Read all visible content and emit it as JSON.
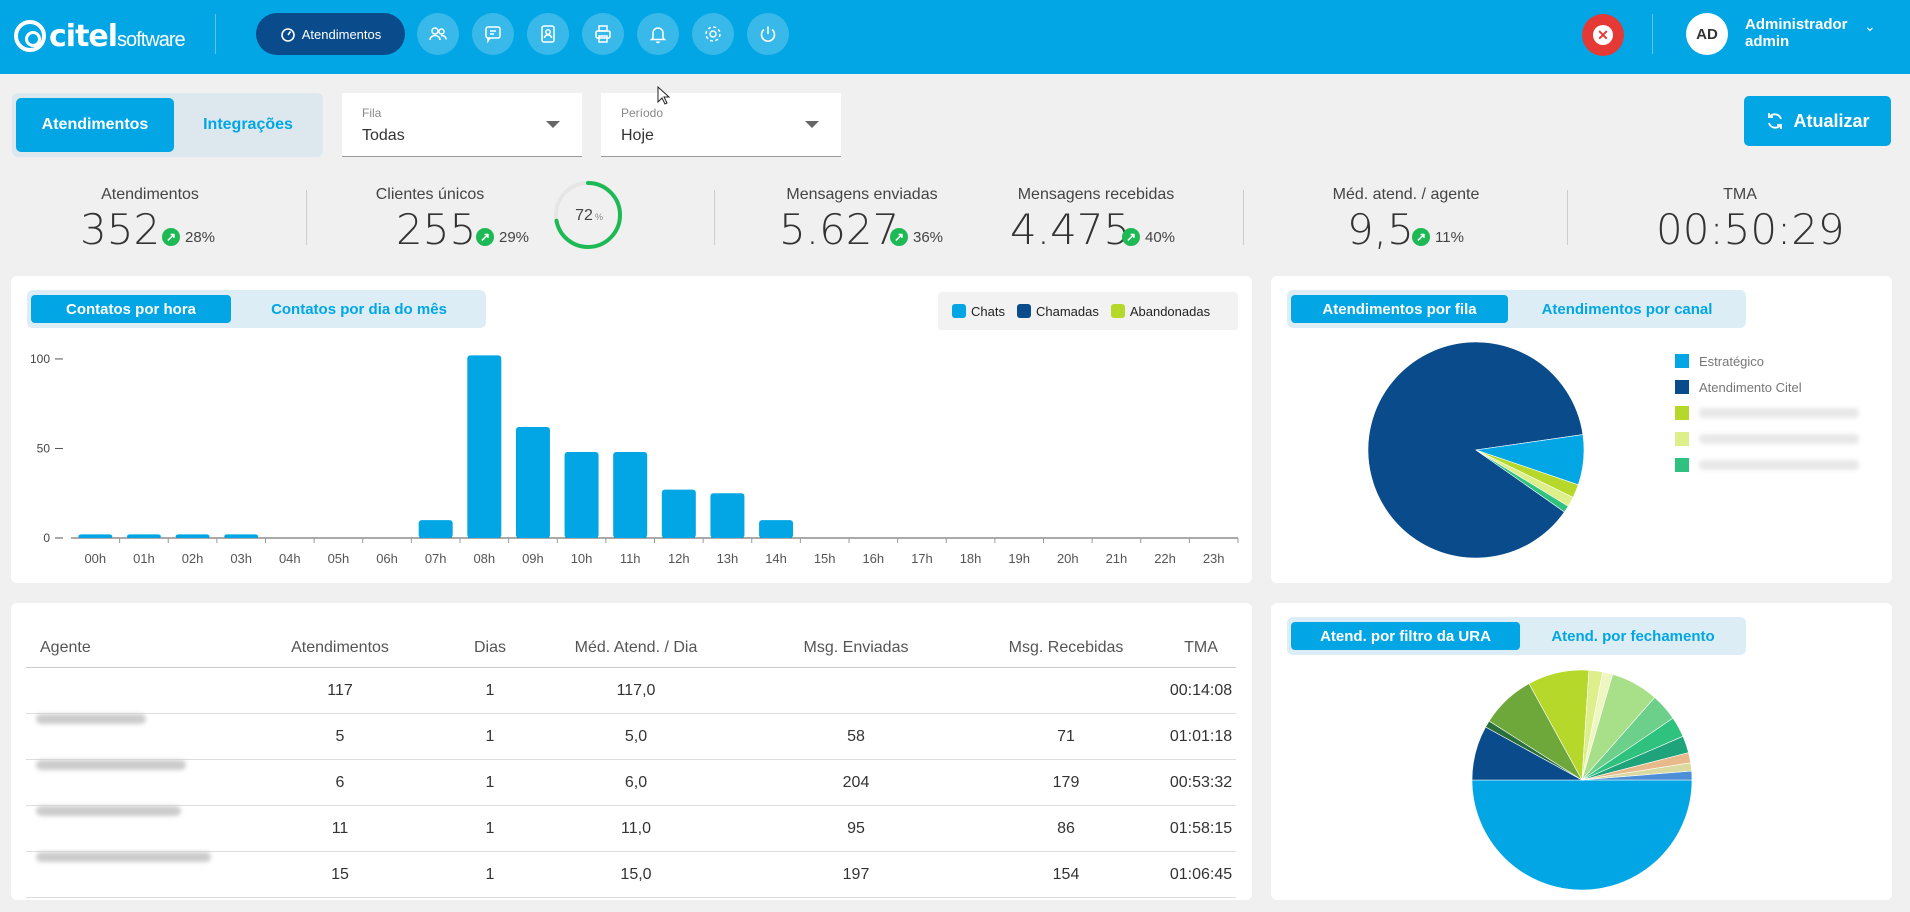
{
  "brand": {
    "name": "citel",
    "sub": "software"
  },
  "nav": {
    "active_label": "Atendimentos"
  },
  "user": {
    "initials": "AD",
    "name": "Administrador",
    "role": "admin"
  },
  "tabs": {
    "active": "Atendimentos",
    "inactive": "Integrações"
  },
  "filters": {
    "fila": {
      "label": "Fila",
      "value": "Todas"
    },
    "periodo": {
      "label": "Período",
      "value": "Hoje"
    }
  },
  "refresh_label": "Atualizar",
  "kpis": {
    "atendimentos": {
      "label": "Atendimentos",
      "value": "352",
      "delta": "28%"
    },
    "clientes": {
      "label": "Clientes únicos",
      "value": "255",
      "delta": "29%",
      "ring_value": "72",
      "ring_unit": "%",
      "ring_fraction": 0.72
    },
    "enviadas": {
      "label": "Mensagens enviadas",
      "value": "5.627",
      "delta": "36%"
    },
    "recebidas": {
      "label": "Mensagens recebidas",
      "value": "4.475",
      "delta": "40%"
    },
    "media": {
      "label": "Méd. atend. / agente",
      "value": "9,5",
      "delta": "11%"
    },
    "tma": {
      "label": "TMA",
      "value": "00:50:29"
    }
  },
  "bar_panel": {
    "tab_active": "Contatos por hora",
    "tab_inactive": "Contatos por dia do mês",
    "legend": [
      "Chats",
      "Chamadas",
      "Abandonadas"
    ]
  },
  "pie1_panel": {
    "tab_active": "Atendimentos por fila",
    "tab_inactive": "Atendimentos por canal",
    "legend": [
      "Estratégico",
      "Atendimento Citel"
    ]
  },
  "pie2_panel": {
    "tab_active": "Atend. por filtro da URA",
    "tab_inactive": "Atend. por fechamento"
  },
  "colors": {
    "chats": "#02a6e4",
    "chamadas": "#0a4b8c",
    "abandonadas": "#b5d82a",
    "accent": "#02a6e4"
  },
  "table": {
    "headers": [
      "Agente",
      "Atendimentos",
      "Dias",
      "Méd. Atend. / Dia",
      "Msg. Enviadas",
      "Msg. Recebidas",
      "TMA"
    ],
    "rows": [
      [
        "",
        "117",
        "1",
        "117,0",
        "",
        "",
        "00:14:08"
      ],
      [
        "",
        "5",
        "1",
        "5,0",
        "58",
        "71",
        "01:01:18"
      ],
      [
        "",
        "6",
        "1",
        "6,0",
        "204",
        "179",
        "00:53:32"
      ],
      [
        "",
        "11",
        "1",
        "11,0",
        "95",
        "86",
        "01:58:15"
      ],
      [
        "",
        "15",
        "1",
        "15,0",
        "197",
        "154",
        "01:06:45"
      ]
    ]
  },
  "chart_data": [
    {
      "type": "bar",
      "categories": [
        "00h",
        "01h",
        "02h",
        "03h",
        "04h",
        "05h",
        "06h",
        "07h",
        "08h",
        "09h",
        "10h",
        "11h",
        "12h",
        "13h",
        "14h",
        "15h",
        "16h",
        "17h",
        "18h",
        "19h",
        "20h",
        "21h",
        "22h",
        "23h"
      ],
      "series": [
        {
          "name": "Chats",
          "values": [
            2,
            2,
            2,
            2,
            0,
            0,
            0,
            10,
            102,
            62,
            48,
            48,
            27,
            25,
            10,
            0,
            0,
            0,
            0,
            0,
            0,
            0,
            0,
            0
          ]
        }
      ],
      "yticks": [
        0,
        50,
        100
      ],
      "ylim": [
        0,
        105
      ]
    },
    {
      "type": "pie",
      "labels": [
        "Atendimento Citel",
        "Estratégico",
        "",
        "",
        ""
      ],
      "values": [
        88,
        7.5,
        2,
        1.5,
        1
      ],
      "colors": [
        "#0a4b8c",
        "#02a6e4",
        "#b5d82a",
        "#dcef8a",
        "#2ec27e"
      ]
    },
    {
      "type": "pie",
      "values": [
        50,
        8,
        1,
        8,
        9,
        2,
        1.5,
        7,
        4,
        3,
        2.5,
        1.5,
        1.2,
        1.3
      ],
      "colors": [
        "#02a6e4",
        "#0a4b8c",
        "#2a6f3a",
        "#6fa83a",
        "#b5d82a",
        "#dcef8a",
        "#eef7c0",
        "#a8e08a",
        "#6ccf8a",
        "#2ec27e",
        "#1fa37a",
        "#e8b98a",
        "#d9d9a0",
        "#4d8fd6"
      ]
    }
  ]
}
